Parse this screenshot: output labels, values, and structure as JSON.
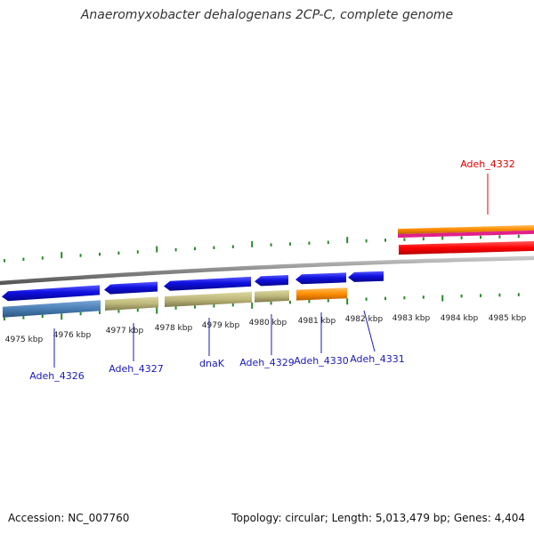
{
  "title": "Anaeromyxobacter dehalogenans 2CP-C, complete genome",
  "footer": {
    "accession": "Accession: NC_007760",
    "summary": "Topology: circular; Length: 5,013,479 bp; Genes: 4,404"
  },
  "colors": {
    "backbone": "#888888",
    "tick": "#2a8a2a",
    "gene_blue": "#1010e0",
    "label_blue": "#1a1ab8",
    "steel": "#4a7fb5",
    "khaki": "#bdb77a",
    "orange": "#ff8c00",
    "red": "#ff0000",
    "magenta": "#e0208a",
    "label_red": "#e00000"
  },
  "kbp_labels": [
    "4975 kbp",
    "4976 kbp",
    "4977 kbp",
    "4978 kbp",
    "4979 kbp",
    "4980 kbp",
    "4981 kbp",
    "4982 kbp",
    "4983 kbp",
    "4984 kbp",
    "4985 kbp"
  ],
  "gene_labels": [
    "Adeh_4326",
    "Adeh_4327",
    "dnaK",
    "Adeh_4329",
    "Adeh_4330",
    "Adeh_4331",
    "Adeh_4332"
  ]
}
